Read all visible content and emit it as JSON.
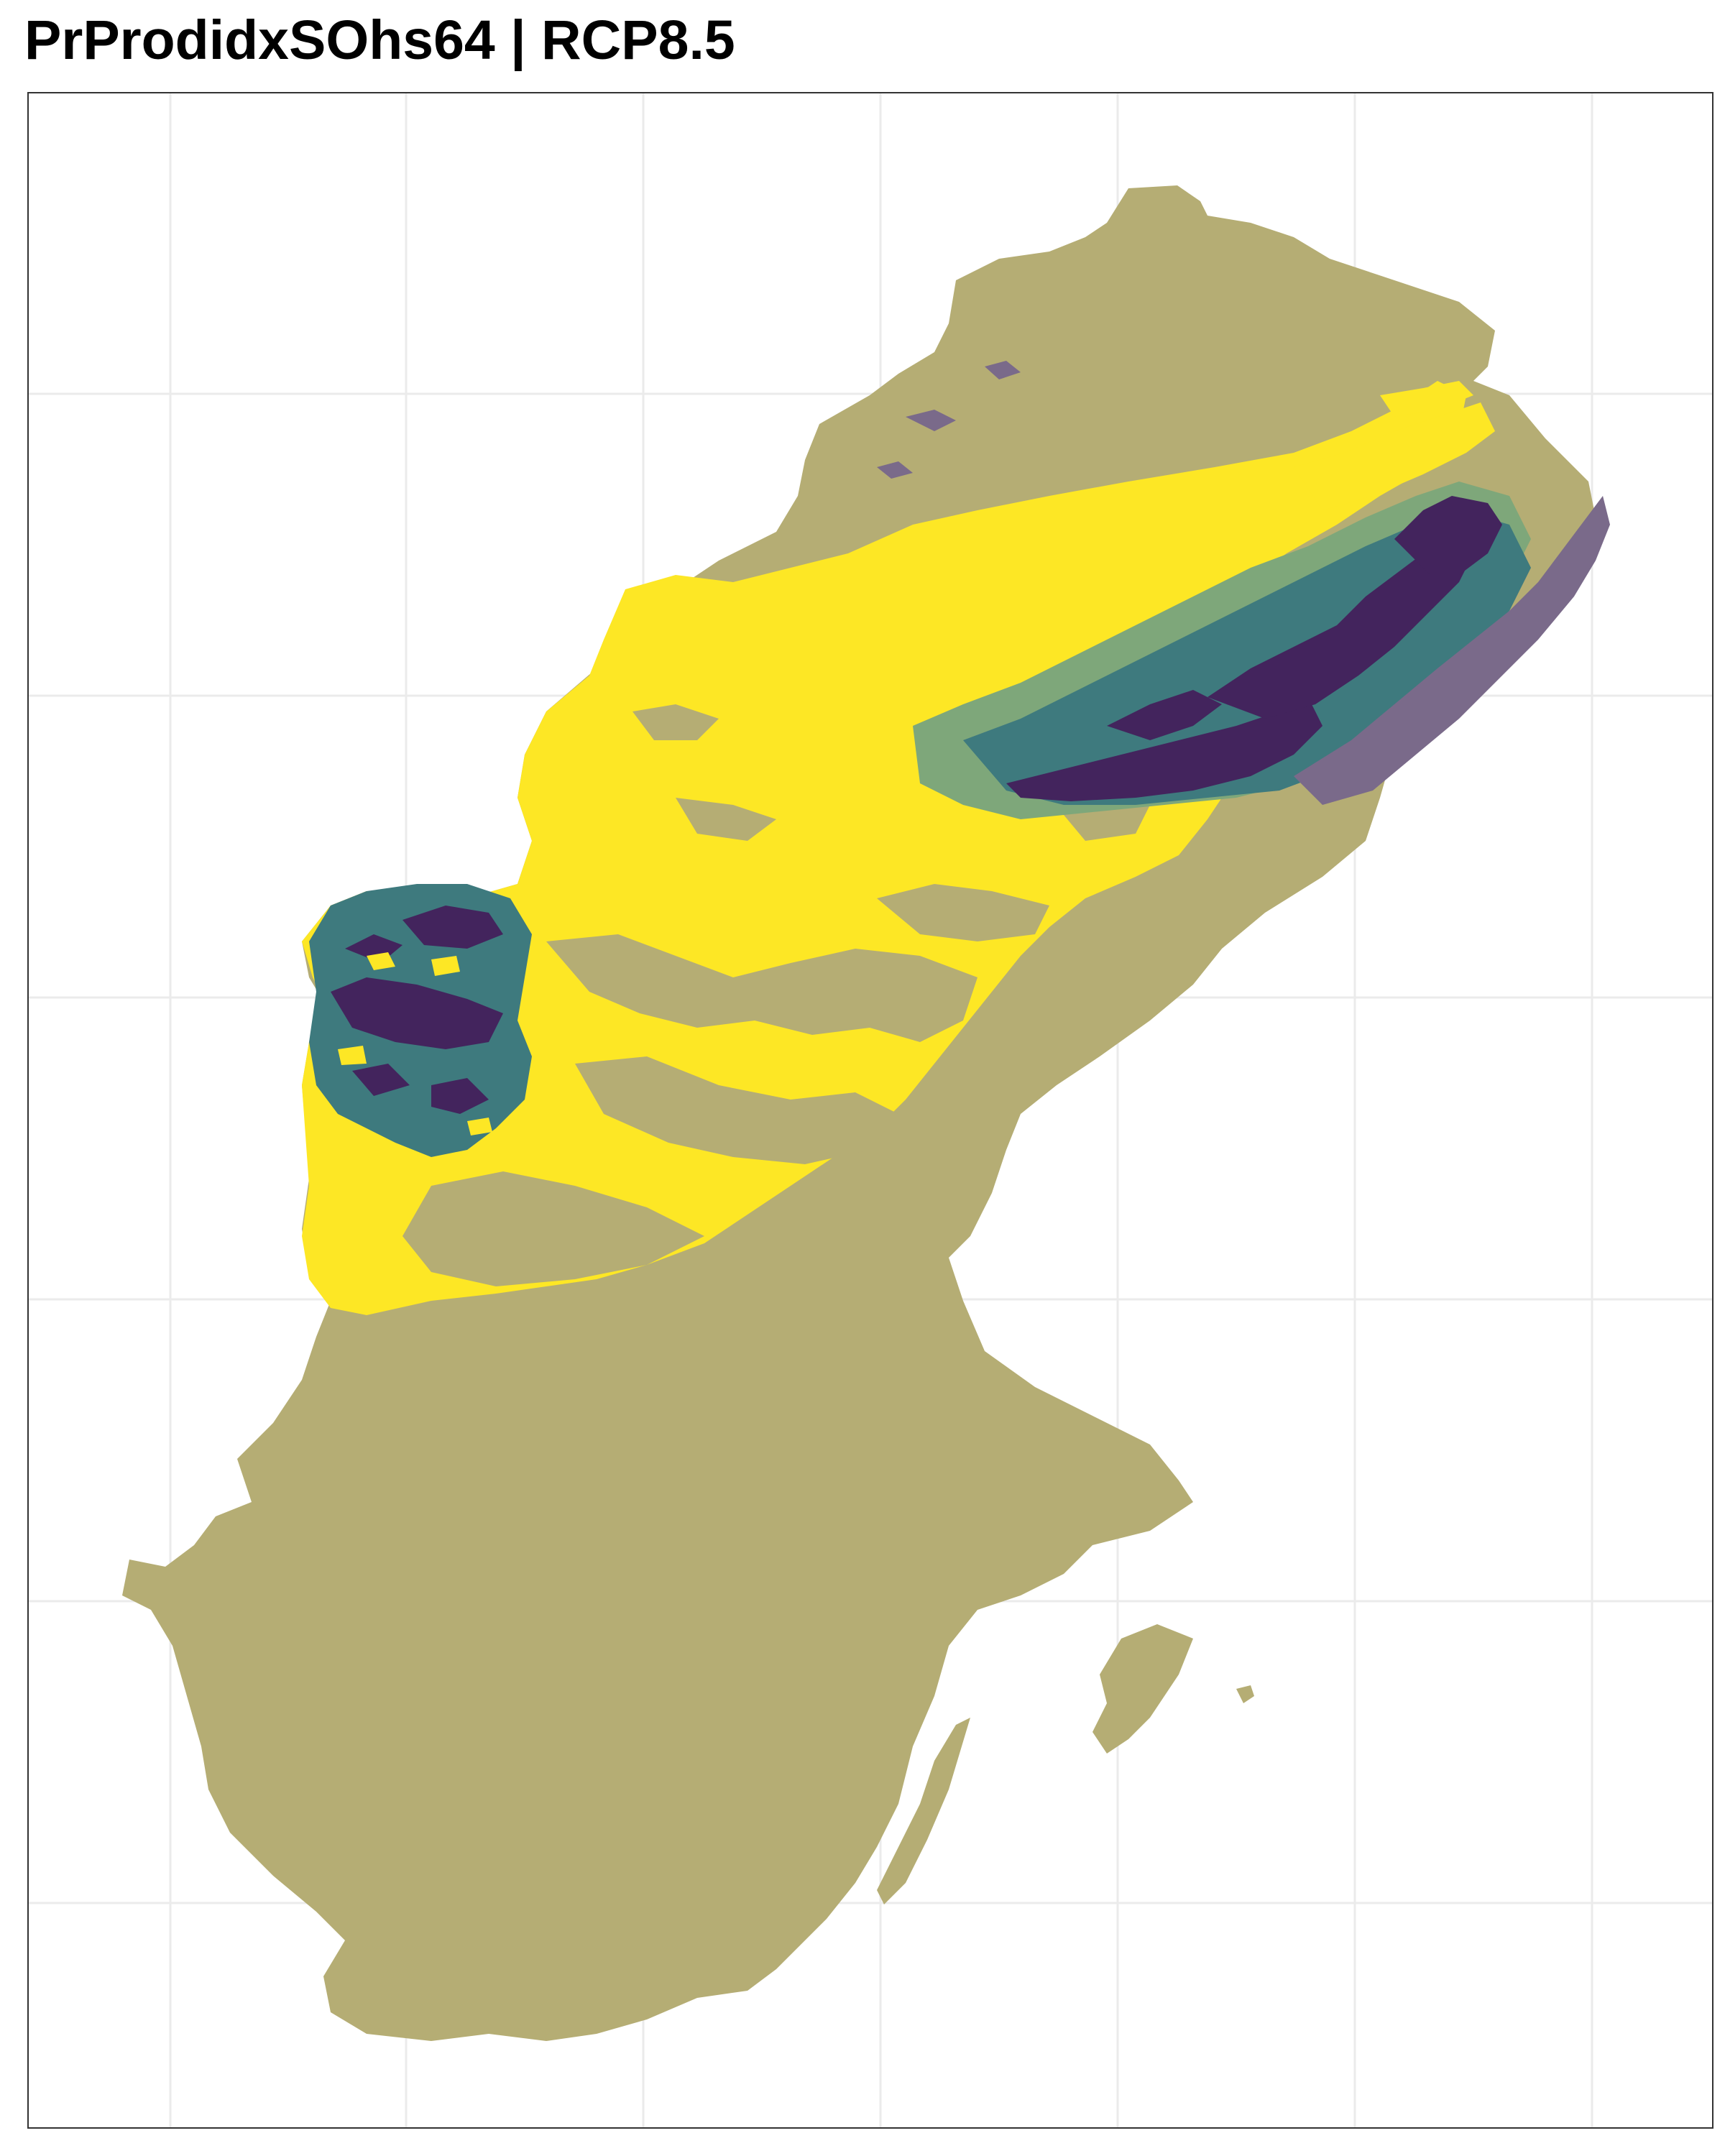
{
  "title": "PrProdidxSOhs64 | RCP8.5",
  "map": {
    "grid": true,
    "colors": {
      "base": "#b5ad74",
      "high": "#fde725",
      "mid_light": "#7ea77a",
      "mid": "#3e7a7e",
      "dark": "#43245d",
      "muted_purple": "#7a6a8a",
      "grid": "#ebebeb",
      "border": "#333333"
    }
  }
}
